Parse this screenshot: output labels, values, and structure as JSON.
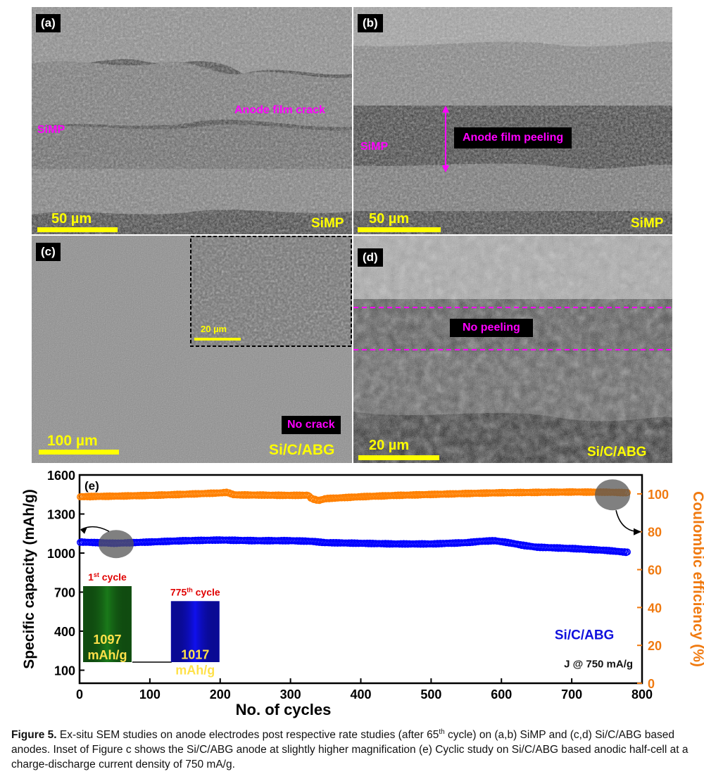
{
  "panels": {
    "a": {
      "label": "(a)",
      "text_left": "SiMP",
      "text_mid": "Anode film crack",
      "scale": "50 µm",
      "sample": "SiMP"
    },
    "b": {
      "label": "(b)",
      "text_left": "SiMP",
      "annotation": "Anode film peeling",
      "scale": "50 µm",
      "sample": "SiMP"
    },
    "c": {
      "label": "(c)",
      "inset_scale": "20 µm",
      "annotation": "No crack",
      "scale": "100 µm",
      "sample": "Si/C/ABG"
    },
    "d": {
      "label": "(d)",
      "annotation": "No peeling",
      "scale": "20 µm",
      "sample": "Si/C/ABG"
    }
  },
  "chart_data": {
    "type": "line",
    "panel_label": "(e)",
    "xlabel": "No. of cycles",
    "ylabel_left": "Specific capacity (mAh/g)",
    "ylabel_right": "Coulombic efficiency (%)",
    "xlim": [
      0,
      800
    ],
    "ylim_left": [
      0,
      1600
    ],
    "ylim_right": [
      0,
      110
    ],
    "x_ticks": [
      "0",
      "100",
      "200",
      "300",
      "400",
      "500",
      "600",
      "700",
      "800"
    ],
    "y_ticks_left": [
      "100",
      "400",
      "700",
      "1000",
      "1300",
      "1600"
    ],
    "y_ticks_right": [
      "0",
      "20",
      "40",
      "60",
      "80",
      "100"
    ],
    "series": [
      {
        "name": "Specific capacity",
        "axis": "left",
        "color": "#0000ff",
        "x": [
          0,
          50,
          100,
          150,
          200,
          250,
          300,
          330,
          350,
          400,
          450,
          500,
          550,
          570,
          590,
          610,
          630,
          650,
          700,
          750,
          780
        ],
        "values": [
          1085,
          1075,
          1085,
          1095,
          1100,
          1095,
          1095,
          1090,
          1080,
          1075,
          1070,
          1070,
          1080,
          1090,
          1095,
          1080,
          1060,
          1045,
          1035,
          1020,
          1005
        ]
      },
      {
        "name": "Coulombic efficiency",
        "axis": "right",
        "color": "#ff8000",
        "x": [
          0,
          50,
          100,
          150,
          200,
          210,
          220,
          300,
          325,
          330,
          340,
          350,
          400,
          450,
          500,
          550,
          600,
          650,
          700,
          750,
          780
        ],
        "values": [
          98.5,
          98.8,
          99.2,
          99.8,
          100.5,
          100.8,
          99.5,
          99.2,
          99.3,
          97.5,
          96.5,
          97.5,
          98.5,
          99.2,
          99.7,
          100.2,
          100.6,
          100.8,
          101.0,
          100.9,
          100.6
        ]
      }
    ],
    "inset": {
      "bars": [
        {
          "cycle_label": "1st cycle",
          "value": 1097,
          "value_label": "1097",
          "unit": "mAh/g",
          "color": "#1a7a1a"
        },
        {
          "cycle_label": "775th cycle",
          "value": 1017,
          "value_label": "1017",
          "unit": "mAh/g",
          "color": "#1010ee"
        }
      ]
    },
    "legend_sample": "Si/C/ABG",
    "current_density": "J @ 750 mA/g"
  },
  "caption": {
    "figure": "Figure 5.",
    "text_1": " Ex-situ SEM studies on anode electrodes post respective rate studies (after 65",
    "sup": "th",
    "text_2": " cycle) on (a,b) SiMP and (c,d) Si/C/ABG based anodes. Inset of Figure c shows the Si/C/ABG anode at slightly higher magnification (e) Cyclic study on Si/C/ABG based anodic half-cell at a charge-discharge current density of 750 mA/g."
  }
}
